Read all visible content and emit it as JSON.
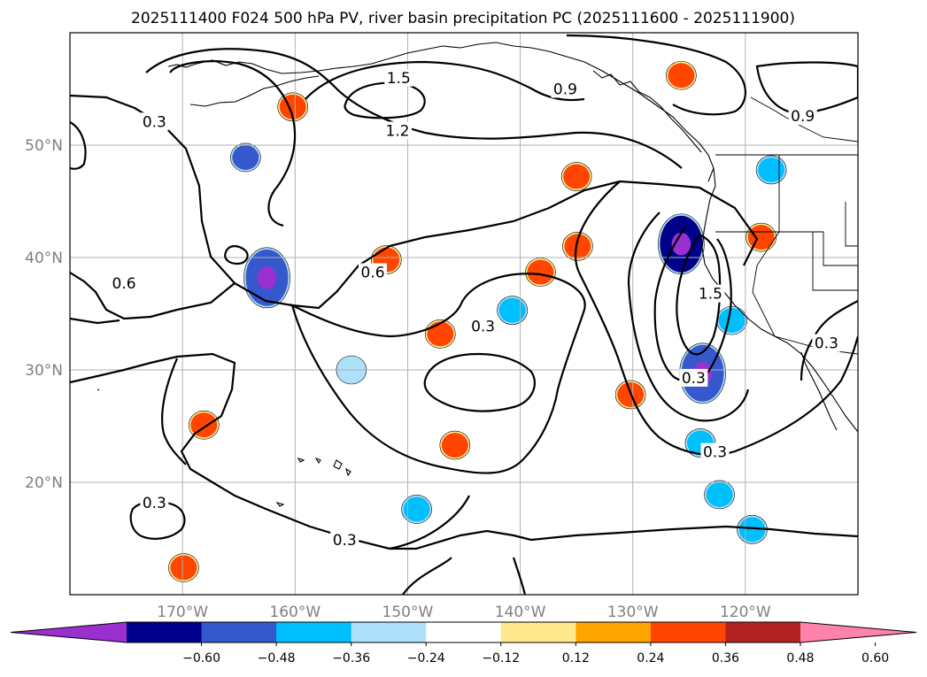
{
  "chart_data": {
    "type": "contour map",
    "title": "2025111400 F024 500 hPa PV, river basin precipitation PC (2025111600 - 2025111900)",
    "x_ticks": [
      "170°W",
      "160°W",
      "150°W",
      "140°W",
      "130°W",
      "120°W"
    ],
    "y_ticks": [
      "20°N",
      "30°N",
      "40°N",
      "50°N"
    ],
    "lon_range": [
      -180,
      -110
    ],
    "lat_range": [
      10,
      60
    ],
    "grid": true,
    "contour_levels": [
      0.3,
      0.6,
      0.9,
      1.2,
      1.5
    ],
    "contour_labels": [
      {
        "text": "0.3",
        "lon": -172.5,
        "lat": 52.1
      },
      {
        "text": "1.5",
        "lon": -150.8,
        "lat": 56.0
      },
      {
        "text": "0.9",
        "lon": -136.0,
        "lat": 55.0
      },
      {
        "text": "0.9",
        "lon": -114.9,
        "lat": 52.6
      },
      {
        "text": "1.2",
        "lon": -150.9,
        "lat": 51.3
      },
      {
        "text": "0.6",
        "lon": -153.1,
        "lat": 38.7
      },
      {
        "text": "0.6",
        "lon": -175.2,
        "lat": 37.7
      },
      {
        "text": "0.3",
        "lon": -143.3,
        "lat": 33.9
      },
      {
        "text": "1.5",
        "lon": -123.1,
        "lat": 36.8
      },
      {
        "text": "0.3",
        "lon": -112.8,
        "lat": 32.4
      },
      {
        "text": "0.3",
        "lon": -124.6,
        "lat": 29.3
      },
      {
        "text": "0.3",
        "lon": -122.7,
        "lat": 22.7
      },
      {
        "text": "0.3",
        "lon": -172.5,
        "lat": 18.2
      },
      {
        "text": "0.3",
        "lon": -155.6,
        "lat": 14.9
      }
    ],
    "colorbar": {
      "ticks": [
        "−0.60",
        "−0.48",
        "−0.36",
        "−0.24",
        "−0.12",
        "0.12",
        "0.24",
        "0.36",
        "0.48",
        "0.60"
      ],
      "colors": [
        "#9b30d0",
        "#00008b",
        "#3558cd",
        "#00bfff",
        "#ade1fa",
        "#ffffff",
        "#ffe98c",
        "#ffa500",
        "#ff4500",
        "#b22222",
        "#ff82ab"
      ],
      "extend": "both"
    },
    "precip_patches": [
      {
        "value": 0.4,
        "lon": -160.2,
        "lat": 53.4
      },
      {
        "value": 0.4,
        "lon": -125.7,
        "lat": 56.2
      },
      {
        "value": 0.4,
        "lon": -151.9,
        "lat": 39.8
      },
      {
        "value": 0.4,
        "lon": -138.2,
        "lat": 38.7
      },
      {
        "value": 0.4,
        "lon": -134.9,
        "lat": 41.0
      },
      {
        "value": 0.4,
        "lon": -147.1,
        "lat": 33.2
      },
      {
        "value": 0.4,
        "lon": -168.1,
        "lat": 25.1
      },
      {
        "value": 0.4,
        "lon": -145.8,
        "lat": 23.3
      },
      {
        "value": 0.4,
        "lon": -169.9,
        "lat": 12.4
      },
      {
        "value": 0.4,
        "lon": -130.2,
        "lat": 27.8
      },
      {
        "value": 0.4,
        "lon": -118.6,
        "lat": 41.8
      },
      {
        "value": 0.4,
        "lon": -135.0,
        "lat": 47.2
      },
      {
        "value": -0.4,
        "lon": -164.4,
        "lat": 48.9
      },
      {
        "value": -0.45,
        "lon": -162.5,
        "lat": 38.2
      },
      {
        "value": -0.55,
        "lon": -125.7,
        "lat": 41.2
      },
      {
        "value": -0.45,
        "lon": -123.8,
        "lat": 29.7
      },
      {
        "value": -0.3,
        "lon": -124.0,
        "lat": 23.5
      },
      {
        "value": -0.3,
        "lon": -122.3,
        "lat": 18.9
      },
      {
        "value": -0.35,
        "lon": -149.2,
        "lat": 17.6
      },
      {
        "value": -0.3,
        "lon": -140.7,
        "lat": 35.3
      },
      {
        "value": -0.3,
        "lon": -121.2,
        "lat": 34.4
      },
      {
        "value": -0.25,
        "lon": -119.4,
        "lat": 15.8
      },
      {
        "value": -0.2,
        "lon": -155.0,
        "lat": 30.0
      },
      {
        "value": -0.25,
        "lon": -117.7,
        "lat": 47.8
      }
    ]
  }
}
